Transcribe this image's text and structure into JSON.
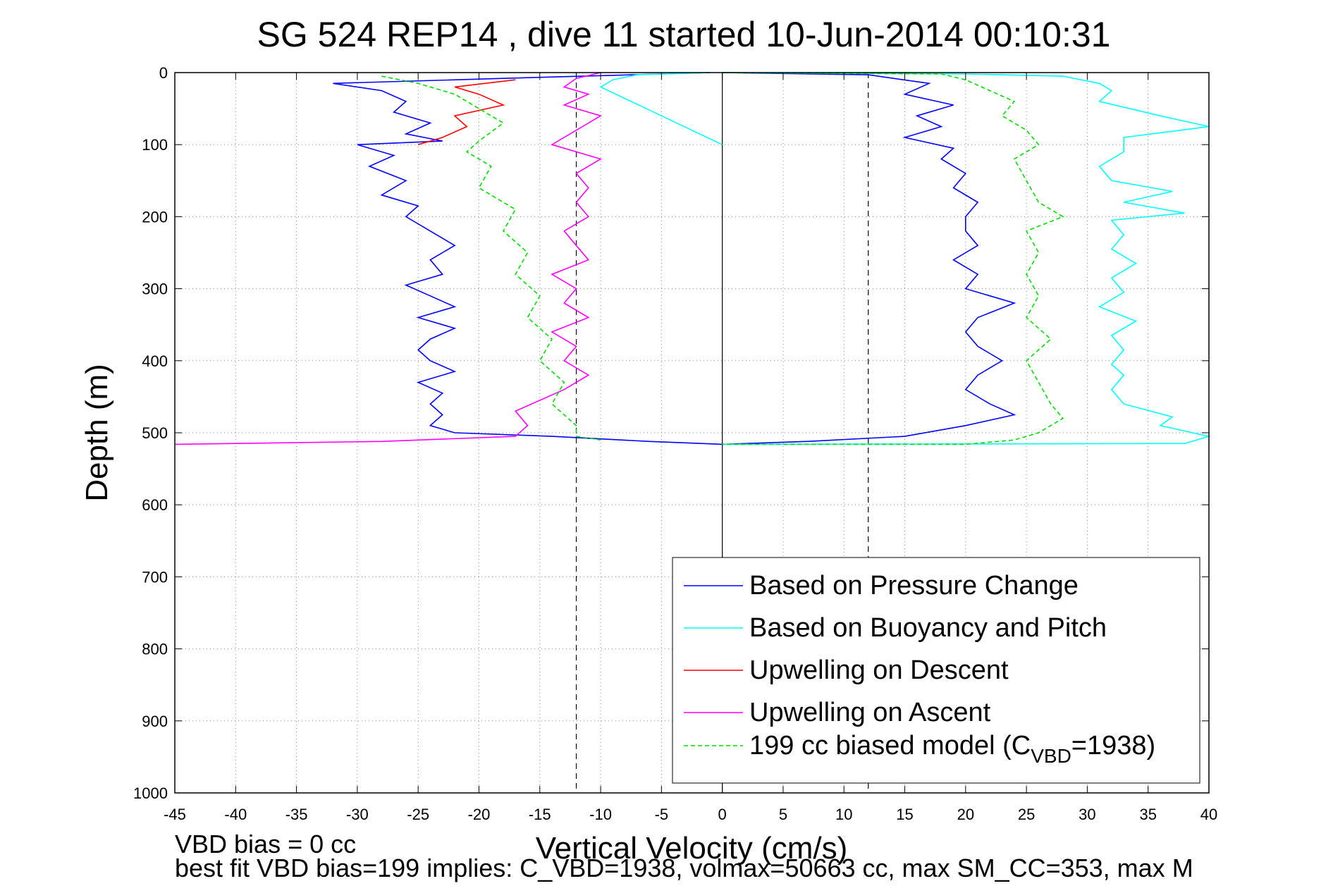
{
  "chart_data": {
    "type": "line",
    "title": "SG 524   REP14  , dive 11 started 10-Jun-2014 00:10:31",
    "xlabel": "Vertical Velocity (cm/s)",
    "ylabel": "Depth (m)",
    "xlim": [
      -45,
      40
    ],
    "ylim": [
      0,
      1000
    ],
    "y_reversed": true,
    "grid": true,
    "legend_placement": "lower-right",
    "x_ticks": [
      "-45",
      "-40",
      "-35",
      "-30",
      "-25",
      "-20",
      "-15",
      "-10",
      "-5",
      "0",
      "5",
      "10",
      "15",
      "20",
      "25",
      "30",
      "35",
      "40"
    ],
    "y_ticks": [
      "0",
      "100",
      "200",
      "300",
      "400",
      "500",
      "600",
      "700",
      "800",
      "900",
      "1000"
    ],
    "reference_lines": [
      {
        "type": "vertical",
        "x": 0,
        "style": "solid"
      },
      {
        "type": "vertical",
        "x": -12,
        "style": "dashed"
      },
      {
        "type": "vertical",
        "x": 12,
        "style": "dashed"
      }
    ],
    "series": [
      {
        "name": "Based on Pressure Change",
        "color": "#0000ff",
        "dash": "solid",
        "segments": [
          [
            [
              -1,
              0
            ],
            [
              -18,
              8
            ],
            [
              -32,
              15
            ],
            [
              -28,
              25
            ],
            [
              -26,
              40
            ],
            [
              -27,
              55
            ],
            [
              -24,
              70
            ],
            [
              -26,
              85
            ],
            [
              -23,
              95
            ],
            [
              -30,
              100
            ],
            [
              -27,
              115
            ],
            [
              -29,
              130
            ],
            [
              -26,
              150
            ],
            [
              -28,
              170
            ],
            [
              -25,
              185
            ],
            [
              -26,
              200
            ],
            [
              -24,
              220
            ],
            [
              -22,
              240
            ],
            [
              -24,
              260
            ],
            [
              -23,
              280
            ],
            [
              -26,
              295
            ],
            [
              -24,
              310
            ],
            [
              -22,
              325
            ],
            [
              -25,
              340
            ],
            [
              -22,
              355
            ],
            [
              -24,
              370
            ],
            [
              -25,
              385
            ],
            [
              -24,
              400
            ],
            [
              -22,
              415
            ],
            [
              -25,
              430
            ],
            [
              -23,
              445
            ],
            [
              -24,
              460
            ],
            [
              -23,
              475
            ],
            [
              -24,
              490
            ],
            [
              -22,
              500
            ],
            [
              -14,
              505
            ],
            [
              -6,
              512
            ],
            [
              0,
              516
            ]
          ],
          [
            [
              0,
              0
            ],
            [
              12,
              3
            ],
            [
              17,
              15
            ],
            [
              15,
              30
            ],
            [
              19,
              45
            ],
            [
              16,
              60
            ],
            [
              18,
              75
            ],
            [
              15,
              90
            ],
            [
              19,
              105
            ],
            [
              18,
              120
            ],
            [
              20,
              140
            ],
            [
              19,
              160
            ],
            [
              21,
              180
            ],
            [
              20,
              200
            ],
            [
              20,
              220
            ],
            [
              21,
              240
            ],
            [
              19,
              260
            ],
            [
              21,
              280
            ],
            [
              20,
              300
            ],
            [
              24,
              320
            ],
            [
              21,
              340
            ],
            [
              20,
              360
            ],
            [
              21,
              380
            ],
            [
              23,
              400
            ],
            [
              21,
              420
            ],
            [
              20,
              440
            ],
            [
              22,
              460
            ],
            [
              24,
              475
            ],
            [
              20,
              490
            ],
            [
              15,
              505
            ],
            [
              7,
              512
            ],
            [
              0,
              516
            ]
          ]
        ]
      },
      {
        "name": "Based on Buoyancy and Pitch",
        "color": "#00ffff",
        "dash": "solid",
        "segments": [
          [
            [
              0,
              100
            ],
            [
              -5,
              60
            ],
            [
              -10,
              20
            ],
            [
              -9,
              10
            ],
            [
              -7,
              3
            ],
            [
              -1,
              0
            ]
          ],
          [
            [
              0,
              0
            ],
            [
              20,
              2
            ],
            [
              28,
              5
            ],
            [
              31,
              15
            ],
            [
              32,
              25
            ],
            [
              31,
              40
            ],
            [
              36,
              60
            ],
            [
              40,
              75
            ],
            [
              33,
              90
            ],
            [
              33,
              110
            ],
            [
              31,
              130
            ],
            [
              32,
              150
            ],
            [
              37,
              165
            ],
            [
              33,
              180
            ],
            [
              38,
              195
            ],
            [
              32,
              205
            ],
            [
              33,
              225
            ],
            [
              32,
              245
            ],
            [
              34,
              265
            ],
            [
              32,
              285
            ],
            [
              33,
              305
            ],
            [
              31,
              325
            ],
            [
              34,
              345
            ],
            [
              32,
              365
            ],
            [
              33,
              385
            ],
            [
              32,
              405
            ],
            [
              33,
              420
            ],
            [
              32,
              440
            ],
            [
              33,
              460
            ],
            [
              37,
              478
            ],
            [
              36,
              490
            ],
            [
              40,
              505
            ],
            [
              38,
              515
            ],
            [
              0,
              516
            ]
          ]
        ]
      },
      {
        "name": "Upwelling on Descent",
        "color": "#ff0000",
        "dash": "solid",
        "segments": [
          [
            [
              -17,
              10
            ],
            [
              -22,
              20
            ],
            [
              -20,
              30
            ],
            [
              -18,
              45
            ],
            [
              -22,
              60
            ],
            [
              -21,
              75
            ],
            [
              -23,
              90
            ],
            [
              -25,
              100
            ]
          ]
        ]
      },
      {
        "name": "Upwelling on Ascent",
        "color": "#ff00ff",
        "dash": "solid",
        "segments": [
          [
            [
              -45,
              516
            ],
            [
              -28,
              512
            ],
            [
              -17,
              505
            ],
            [
              -16,
              490
            ],
            [
              -17,
              470
            ],
            [
              -15,
              455
            ],
            [
              -13,
              440
            ],
            [
              -11,
              420
            ],
            [
              -13,
              400
            ],
            [
              -12,
              380
            ],
            [
              -14,
              360
            ],
            [
              -11,
              340
            ],
            [
              -13,
              320
            ],
            [
              -12,
              300
            ],
            [
              -14,
              280
            ],
            [
              -11,
              260
            ],
            [
              -12,
              240
            ],
            [
              -13,
              220
            ],
            [
              -11,
              200
            ],
            [
              -12,
              180
            ],
            [
              -11,
              160
            ],
            [
              -12,
              140
            ],
            [
              -10,
              120
            ],
            [
              -14,
              100
            ],
            [
              -12,
              80
            ],
            [
              -10,
              60
            ],
            [
              -13,
              45
            ],
            [
              -11,
              30
            ],
            [
              -13,
              20
            ],
            [
              -12,
              8
            ],
            [
              -10,
              0
            ]
          ]
        ]
      },
      {
        "name": "199 cc biased model (C",
        "name_sub": "VBD",
        "name_suffix": "=1938)",
        "color": "#00dd00",
        "dash": "dashed",
        "segments": [
          [
            [
              -28,
              5
            ],
            [
              -25,
              15
            ],
            [
              -22,
              30
            ],
            [
              -20,
              50
            ],
            [
              -18,
              70
            ],
            [
              -20,
              95
            ],
            [
              -21,
              110
            ],
            [
              -19,
              130
            ],
            [
              -20,
              160
            ],
            [
              -17,
              190
            ],
            [
              -18,
              220
            ],
            [
              -16,
              250
            ],
            [
              -17,
              280
            ],
            [
              -15,
              310
            ],
            [
              -16,
              340
            ],
            [
              -14,
              370
            ],
            [
              -15,
              400
            ],
            [
              -13,
              430
            ],
            [
              -14,
              460
            ],
            [
              -12,
              490
            ],
            [
              -12,
              505
            ],
            [
              -10,
              510
            ]
          ],
          [
            [
              0,
              0
            ],
            [
              18,
              2
            ],
            [
              20,
              10
            ],
            [
              22,
              25
            ],
            [
              24,
              40
            ],
            [
              23,
              60
            ],
            [
              25,
              80
            ],
            [
              26,
              100
            ],
            [
              24,
              120
            ],
            [
              25,
              150
            ],
            [
              26,
              180
            ],
            [
              28,
              200
            ],
            [
              25,
              220
            ],
            [
              26,
              250
            ],
            [
              25,
              280
            ],
            [
              26,
              310
            ],
            [
              25,
              340
            ],
            [
              27,
              370
            ],
            [
              25,
              400
            ],
            [
              26,
              430
            ],
            [
              27,
              460
            ],
            [
              28,
              480
            ],
            [
              26,
              500
            ],
            [
              24,
              510
            ],
            [
              20,
              516
            ],
            [
              10,
              516
            ],
            [
              0,
              516
            ]
          ]
        ]
      }
    ],
    "annotations": [
      "VBD bias = 0 cc",
      "best fit VBD bias=199 implies: C_VBD=1938, volmax=50663 cc, max SM_CC=353, max M"
    ]
  }
}
